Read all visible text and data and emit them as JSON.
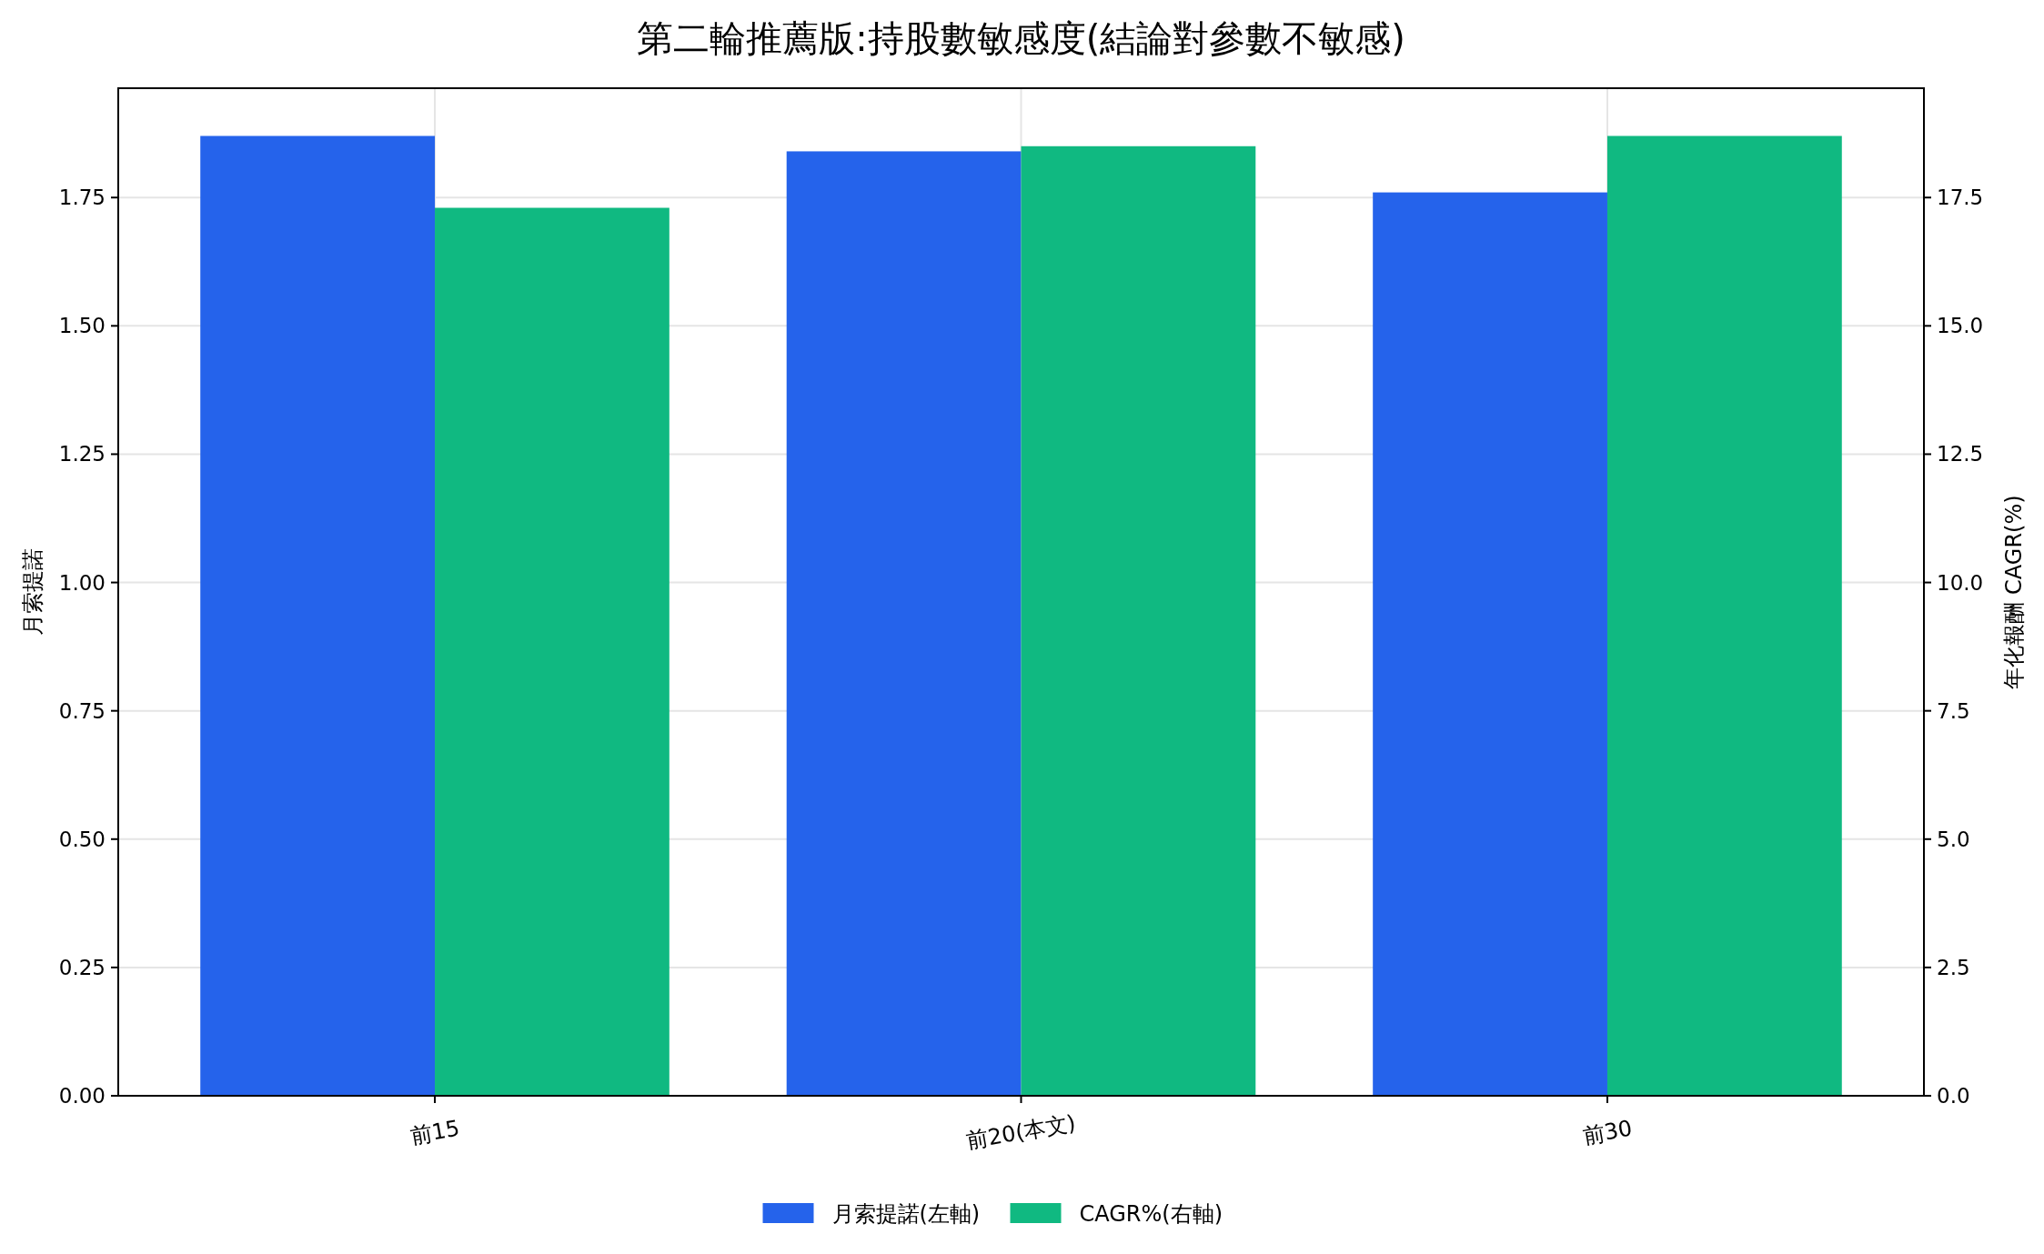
{
  "chart_data": {
    "type": "bar",
    "title": "第二輪推薦版:持股數敏感度(結論對參數不敏感)",
    "categories": [
      "前15",
      "前20(本文)",
      "前30"
    ],
    "ylabel": "月索提諾",
    "y2label": "年化報酬 CAGR(%)",
    "series": [
      {
        "name": "月索提諾(左軸)",
        "color": "#2563eb",
        "values": [
          1.87,
          1.84,
          1.76
        ]
      },
      {
        "name": "CAGR%(右軸)",
        "color": "#10b981",
        "values": [
          17.3,
          18.5,
          18.7
        ],
        "axis": "y2"
      }
    ],
    "ylim": [
      0,
      1.963
    ],
    "yticks": [
      {
        "value": 0,
        "label": "0.00"
      },
      {
        "value": 0.25,
        "label": "0.25"
      },
      {
        "value": 0.5,
        "label": "0.50"
      },
      {
        "value": 0.75,
        "label": "0.75"
      },
      {
        "value": 1,
        "label": "1.00"
      },
      {
        "value": 1.25,
        "label": "1.25"
      },
      {
        "value": 1.5,
        "label": "1.50"
      },
      {
        "value": 1.75,
        "label": "1.75"
      }
    ],
    "y2lim": [
      0,
      19.63
    ],
    "y2ticks": [
      {
        "value": 0,
        "label": "0.0"
      },
      2.5,
      {
        "value": 5,
        "label": "5.0"
      },
      7.5,
      {
        "value": 10,
        "label": "10.0"
      },
      12.5,
      {
        "value": 15,
        "label": "15.0"
      },
      17.5
    ],
    "grid": true,
    "legend": "bottom"
  }
}
